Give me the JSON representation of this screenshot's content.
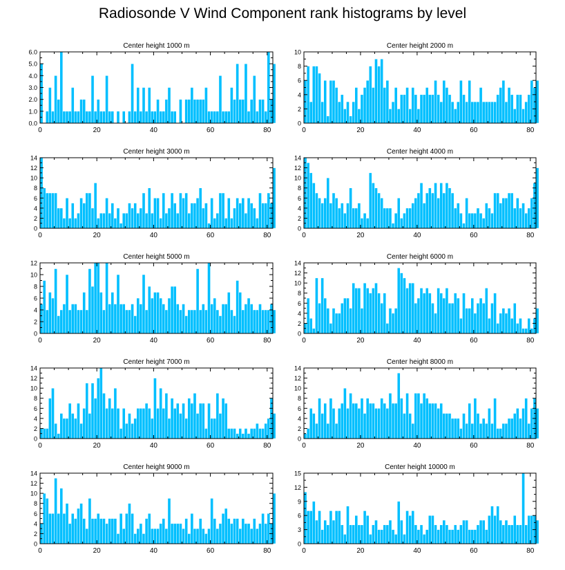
{
  "title": "Radiosonde V Wind Component rank histograms by level",
  "colors": {
    "bar": "#00bfff",
    "bar_edge": "#ffffff",
    "axis": "#000000"
  },
  "chart_data": [
    {
      "type": "bar",
      "title": "Center height 1000 m",
      "xlim": [
        0,
        82
      ],
      "xticks": [
        0,
        20,
        40,
        60,
        80
      ],
      "ylim": [
        0,
        6
      ],
      "yticks": [
        "0.0",
        "1.0",
        "2.0",
        "3.0",
        "4.0",
        "5.0",
        "6.0"
      ],
      "values": [
        5,
        0,
        1,
        3,
        1,
        4,
        2,
        6,
        1,
        1,
        1,
        3,
        1,
        1,
        2,
        2,
        1,
        1,
        4,
        1,
        2,
        1,
        1,
        4,
        1,
        1,
        0,
        1,
        0,
        1,
        0,
        1,
        5,
        1,
        3,
        1,
        3,
        1,
        3,
        1,
        1,
        2,
        1,
        1,
        2,
        3,
        1,
        1,
        0,
        2,
        0,
        2,
        2,
        3,
        2,
        2,
        2,
        2,
        3,
        1,
        1,
        1,
        1,
        4,
        1,
        1,
        1,
        3,
        2,
        5,
        2,
        2,
        5,
        1,
        2,
        4,
        1,
        2,
        2,
        1,
        6,
        2,
        5
      ]
    },
    {
      "type": "bar",
      "title": "Center height 2000 m",
      "xlim": [
        0,
        82
      ],
      "xticks": [
        0,
        20,
        40,
        60,
        80
      ],
      "ylim": [
        0,
        10
      ],
      "yticks": [
        "0",
        "2",
        "4",
        "6",
        "8",
        "10"
      ],
      "values": [
        6,
        8,
        3,
        8,
        8,
        7,
        3,
        6,
        1,
        6,
        6,
        5,
        3,
        4,
        2,
        3,
        1,
        3,
        5,
        2,
        4,
        5,
        6,
        8,
        5,
        9,
        8,
        9,
        5,
        6,
        2,
        3,
        5,
        2,
        4,
        4,
        5,
        2,
        5,
        4,
        2,
        4,
        4,
        5,
        4,
        4,
        6,
        4,
        3,
        6,
        5,
        4,
        3,
        2,
        3,
        6,
        4,
        3,
        6,
        3,
        3,
        3,
        5,
        3,
        3,
        3,
        3,
        3,
        4,
        5,
        6,
        3,
        5,
        4,
        2,
        4,
        4,
        2,
        3,
        4,
        6,
        5,
        6
      ]
    },
    {
      "type": "bar",
      "title": "Center height 3000 m",
      "xlim": [
        0,
        82
      ],
      "xticks": [
        0,
        20,
        40,
        60,
        80
      ],
      "ylim": [
        0,
        14
      ],
      "yticks": [
        "0",
        "2",
        "4",
        "6",
        "8",
        "10",
        "12",
        "14"
      ],
      "values": [
        14,
        8,
        7,
        7,
        7,
        7,
        4,
        4,
        2,
        6,
        2,
        5,
        2,
        3,
        6,
        5,
        7,
        7,
        4,
        9,
        2,
        3,
        3,
        6,
        3,
        5,
        2,
        4,
        1,
        3,
        3,
        5,
        4,
        5,
        3,
        4,
        7,
        3,
        8,
        3,
        6,
        6,
        2,
        7,
        3,
        4,
        7,
        5,
        3,
        7,
        6,
        7,
        3,
        5,
        5,
        6,
        8,
        4,
        5,
        1,
        6,
        2,
        3,
        7,
        7,
        2,
        6,
        2,
        4,
        6,
        5,
        6,
        3,
        6,
        5,
        4,
        2,
        7,
        5,
        5,
        7,
        5,
        12
      ]
    },
    {
      "type": "bar",
      "title": "Center height 4000 m",
      "xlim": [
        0,
        82
      ],
      "xticks": [
        0,
        20,
        40,
        60,
        80
      ],
      "ylim": [
        0,
        14
      ],
      "yticks": [
        "0",
        "2",
        "4",
        "6",
        "8",
        "10",
        "12",
        "14"
      ],
      "values": [
        14,
        13,
        11,
        9,
        7,
        6,
        5,
        6,
        10,
        5,
        7,
        6,
        4,
        5,
        3,
        5,
        8,
        4,
        4,
        5,
        2,
        3,
        2,
        11,
        9,
        8,
        7,
        6,
        4,
        4,
        4,
        1,
        3,
        6,
        2,
        3,
        4,
        4,
        5,
        6,
        7,
        9,
        5,
        7,
        8,
        7,
        9,
        6,
        9,
        7,
        9,
        8,
        7,
        4,
        5,
        3,
        1,
        6,
        3,
        3,
        3,
        4,
        3,
        2,
        5,
        4,
        3,
        7,
        7,
        5,
        6,
        6,
        7,
        7,
        4,
        6,
        4,
        5,
        3,
        4,
        6,
        9,
        12
      ]
    },
    {
      "type": "bar",
      "title": "Center height 5000 m",
      "xlim": [
        0,
        82
      ],
      "xticks": [
        0,
        20,
        40,
        60,
        80
      ],
      "ylim": [
        0,
        12
      ],
      "yticks": [
        "0",
        "2",
        "4",
        "6",
        "8",
        "10",
        "12"
      ],
      "values": [
        5,
        9,
        4,
        7,
        6,
        11,
        3,
        4,
        5,
        10,
        4,
        5,
        5,
        4,
        4,
        7,
        4,
        11,
        8,
        12,
        12,
        7,
        4,
        12,
        5,
        7,
        5,
        10,
        5,
        5,
        4,
        4,
        5,
        3,
        6,
        5,
        10,
        4,
        8,
        6,
        7,
        7,
        6,
        5,
        4,
        6,
        8,
        8,
        5,
        4,
        5,
        3,
        4,
        4,
        4,
        11,
        4,
        5,
        4,
        12,
        5,
        6,
        4,
        3,
        5,
        5,
        7,
        4,
        3,
        9,
        7,
        4,
        5,
        6,
        5,
        4,
        4,
        5,
        4,
        4,
        4,
        5,
        4
      ]
    },
    {
      "type": "bar",
      "title": "Center height 6000 m",
      "xlim": [
        0,
        82
      ],
      "xticks": [
        0,
        20,
        40,
        60,
        80
      ],
      "ylim": [
        0,
        14
      ],
      "yticks": [
        "0",
        "2",
        "4",
        "6",
        "8",
        "10",
        "12",
        "14"
      ],
      "values": [
        2,
        7,
        3,
        1,
        11,
        6,
        11,
        7,
        5,
        2,
        5,
        4,
        4,
        6,
        7,
        7,
        5,
        10,
        9,
        9,
        5,
        10,
        9,
        8,
        9,
        10,
        8,
        6,
        8,
        2,
        5,
        4,
        5,
        13,
        12,
        11,
        9,
        10,
        10,
        6,
        7,
        9,
        8,
        9,
        8,
        6,
        4,
        9,
        8,
        7,
        9,
        6,
        6,
        8,
        7,
        3,
        8,
        5,
        5,
        7,
        4,
        6,
        7,
        6,
        9,
        3,
        6,
        8,
        2,
        4,
        5,
        4,
        5,
        3,
        6,
        2,
        3,
        1,
        1,
        3,
        1,
        3,
        5
      ]
    },
    {
      "type": "bar",
      "title": "Center height 7000 m",
      "xlim": [
        0,
        82
      ],
      "xticks": [
        0,
        20,
        40,
        60,
        80
      ],
      "ylim": [
        0,
        14
      ],
      "yticks": [
        "0",
        "2",
        "4",
        "6",
        "8",
        "10",
        "12",
        "14"
      ],
      "values": [
        2,
        2,
        2,
        8,
        10,
        3,
        1,
        5,
        4,
        4,
        7,
        5,
        4,
        7,
        3,
        6,
        11,
        5,
        11,
        8,
        12,
        14,
        9,
        6,
        8,
        6,
        10,
        6,
        2,
        6,
        3,
        5,
        3,
        4,
        6,
        6,
        6,
        7,
        6,
        4,
        12,
        6,
        10,
        6,
        9,
        4,
        8,
        6,
        7,
        5,
        7,
        4,
        8,
        7,
        9,
        5,
        7,
        7,
        2,
        7,
        4,
        4,
        9,
        5,
        8,
        7,
        2,
        2,
        2,
        1,
        2,
        1,
        2,
        1,
        2,
        2,
        3,
        2,
        2,
        3,
        4,
        8,
        5
      ]
    },
    {
      "type": "bar",
      "title": "Center height 8000 m",
      "xlim": [
        0,
        82
      ],
      "xticks": [
        0,
        20,
        40,
        60,
        80
      ],
      "ylim": [
        0,
        14
      ],
      "yticks": [
        "0",
        "2",
        "4",
        "6",
        "8",
        "10",
        "12",
        "14"
      ],
      "values": [
        1,
        2,
        6,
        5,
        3,
        8,
        5,
        7,
        3,
        8,
        6,
        3,
        6,
        7,
        10,
        6,
        9,
        7,
        7,
        6,
        8,
        5,
        8,
        7,
        7,
        6,
        6,
        8,
        7,
        6,
        9,
        7,
        7,
        13,
        8,
        5,
        9,
        5,
        3,
        9,
        9,
        7,
        9,
        8,
        7,
        7,
        7,
        6,
        7,
        5,
        5,
        5,
        4,
        4,
        4,
        2,
        5,
        3,
        7,
        3,
        8,
        5,
        3,
        4,
        3,
        6,
        3,
        8,
        2,
        2,
        3,
        3,
        4,
        4,
        5,
        6,
        4,
        6,
        8,
        3,
        6,
        8,
        6
      ]
    },
    {
      "type": "bar",
      "title": "Center height 9000 m",
      "xlim": [
        0,
        82
      ],
      "xticks": [
        0,
        20,
        40,
        60,
        80
      ],
      "ylim": [
        0,
        14
      ],
      "yticks": [
        "0",
        "2",
        "4",
        "6",
        "8",
        "10",
        "12",
        "14"
      ],
      "values": [
        4,
        10,
        9,
        6,
        6,
        13,
        6,
        11,
        6,
        8,
        4,
        6,
        5,
        7,
        8,
        5,
        3,
        9,
        5,
        5,
        6,
        5,
        5,
        4,
        5,
        5,
        5,
        2,
        6,
        3,
        6,
        8,
        6,
        2,
        3,
        4,
        2,
        5,
        6,
        3,
        3,
        3,
        4,
        5,
        3,
        9,
        4,
        4,
        4,
        4,
        3,
        5,
        2,
        6,
        3,
        3,
        5,
        3,
        2,
        3,
        9,
        5,
        3,
        4,
        6,
        7,
        5,
        4,
        5,
        5,
        3,
        5,
        4,
        4,
        3,
        5,
        3,
        4,
        6,
        4,
        6,
        4,
        10
      ]
    },
    {
      "type": "bar",
      "title": "Center height 10000 m",
      "xlim": [
        0,
        82
      ],
      "xticks": [
        0,
        20,
        40,
        60,
        80
      ],
      "ylim": [
        0,
        15
      ],
      "yticks": [
        "0",
        "3",
        "6",
        "9",
        "12",
        "15"
      ],
      "values": [
        11,
        7,
        7,
        9,
        5,
        7,
        3,
        5,
        4,
        7,
        5,
        7,
        7,
        4,
        2,
        8,
        4,
        4,
        6,
        4,
        4,
        7,
        6,
        2,
        4,
        5,
        3,
        3,
        4,
        4,
        5,
        3,
        2,
        9,
        5,
        2,
        7,
        6,
        7,
        4,
        3,
        4,
        2,
        3,
        6,
        6,
        4,
        3,
        4,
        5,
        4,
        3,
        3,
        4,
        3,
        4,
        5,
        5,
        3,
        3,
        3,
        4,
        5,
        5,
        3,
        6,
        8,
        6,
        8,
        5,
        4,
        5,
        4,
        4,
        6,
        4,
        4,
        15,
        4,
        6,
        6,
        6,
        5
      ]
    }
  ]
}
